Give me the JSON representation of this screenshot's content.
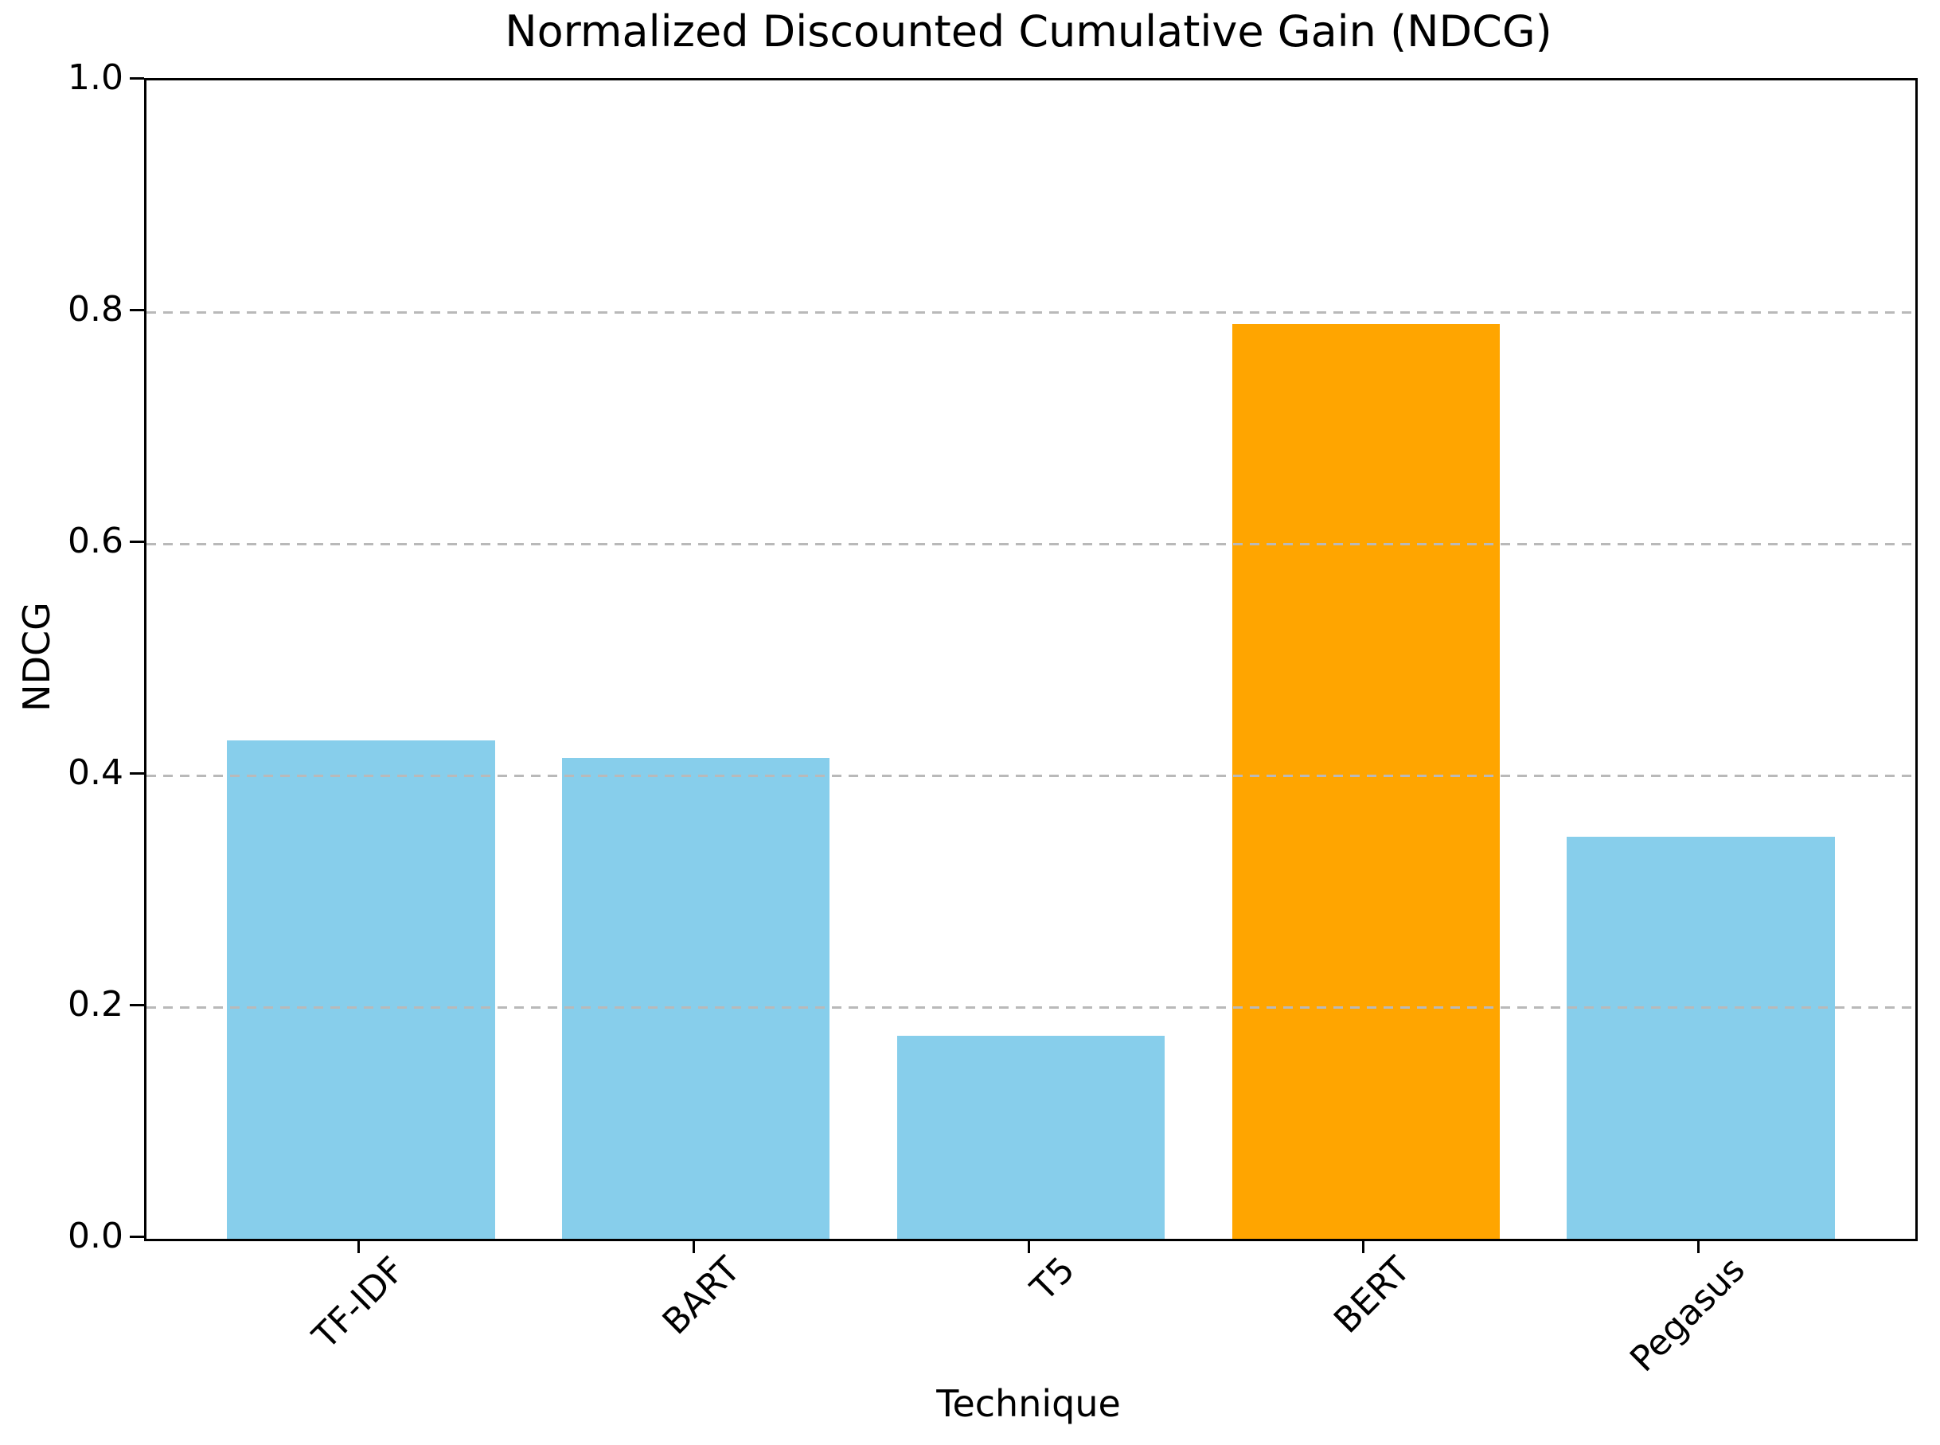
{
  "chart_data": {
    "type": "bar",
    "title": "Normalized Discounted Cumulative Gain (NDCG)",
    "xlabel": "Technique",
    "ylabel": "NDCG",
    "categories": [
      "TF-IDF",
      "BART",
      "T5",
      "BERT",
      "Pegasus"
    ],
    "values": [
      0.43,
      0.415,
      0.175,
      0.79,
      0.347
    ],
    "highlight_category": "BERT",
    "colors": {
      "default_bar": "#87CEEB",
      "highlight_bar": "#FFA500",
      "gridline": "#b9b9b9",
      "axis": "#000000"
    },
    "bar_colors": [
      "#87CEEB",
      "#87CEEB",
      "#87CEEB",
      "#FFA500",
      "#87CEEB"
    ],
    "ylim": [
      0.0,
      1.0
    ],
    "yticks": [
      0.0,
      0.2,
      0.4,
      0.6,
      0.8,
      1.0
    ],
    "ytick_labels": [
      "0.0",
      "0.2",
      "0.4",
      "0.6",
      "0.8",
      "1.0"
    ],
    "gridlines_at": [
      0.2,
      0.4,
      0.6,
      0.8
    ],
    "grid_style": "dashed horizontal, drawn over bars",
    "xtick_label_rotation_deg": 45,
    "legend": "none"
  }
}
